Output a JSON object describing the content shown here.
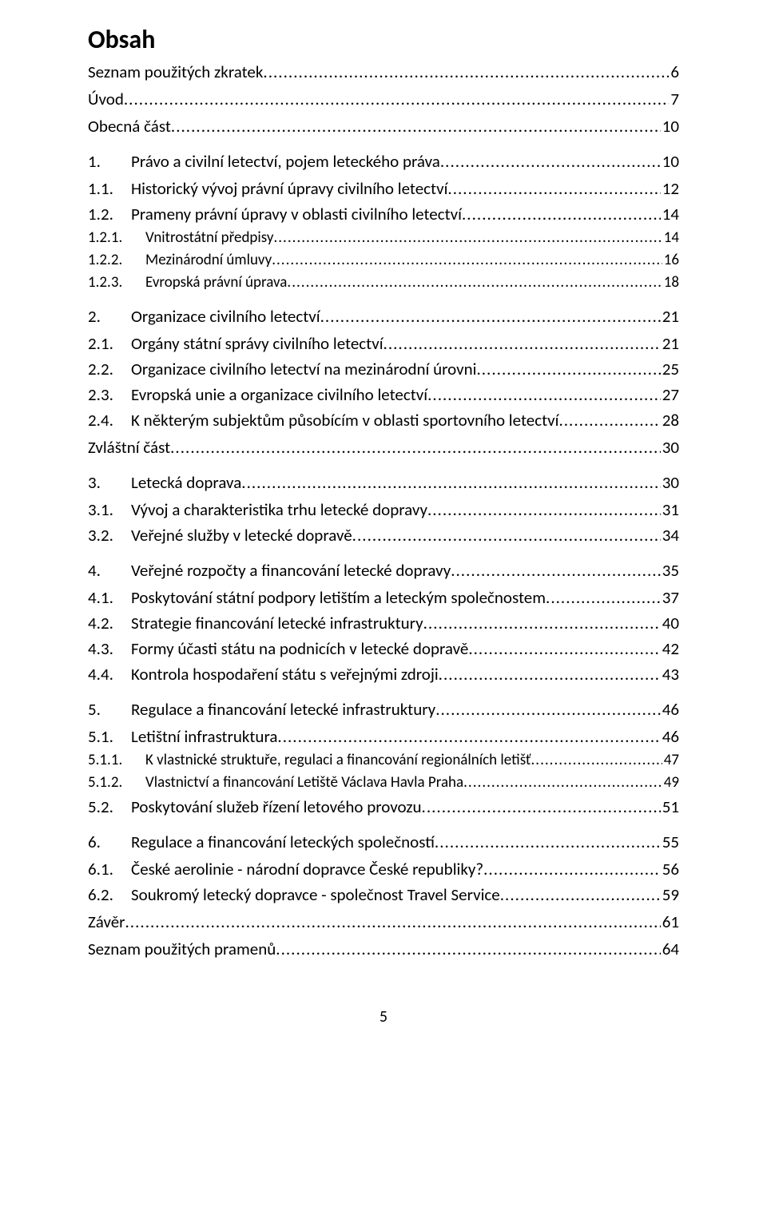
{
  "title": "Obsah",
  "page_number": "5",
  "entries": [
    {
      "level": "front",
      "num": "",
      "text": "Seznam použitých zkratek",
      "page": "6"
    },
    {
      "level": "front",
      "num": "",
      "text": "Úvod",
      "page": "7"
    },
    {
      "level": "front",
      "num": "",
      "text": "Obecná část",
      "page": "10"
    },
    {
      "level": "1",
      "num": "1.",
      "text": "Právo a civilní letectví, pojem leteckého práva",
      "page": "10"
    },
    {
      "level": "2",
      "num": "1.1.",
      "text": "Historický vývoj právní úpravy civilního letectví",
      "page": "12"
    },
    {
      "level": "2",
      "num": "1.2.",
      "text": "Prameny právní úpravy v oblasti civilního letectví",
      "page": "14"
    },
    {
      "level": "3",
      "num": "1.2.1.",
      "text": "Vnitrostátní předpisy",
      "page": "14"
    },
    {
      "level": "3",
      "num": "1.2.2.",
      "text": "Mezinárodní úmluvy",
      "page": "16"
    },
    {
      "level": "3",
      "num": "1.2.3.",
      "text": "Evropská právní úprava",
      "page": "18"
    },
    {
      "level": "1",
      "num": "2.",
      "text": "Organizace civilního letectví",
      "page": "21"
    },
    {
      "level": "2",
      "num": "2.1.",
      "text": "Orgány státní správy civilního letectví",
      "page": "21"
    },
    {
      "level": "2",
      "num": "2.2.",
      "text": "Organizace civilního letectví na mezinárodní úrovni",
      "page": "25"
    },
    {
      "level": "2",
      "num": "2.3.",
      "text": "Evropská unie a organizace civilního letectví",
      "page": "27"
    },
    {
      "level": "2",
      "num": "2.4.",
      "text": "K některým subjektům působícím v oblasti sportovního letectví",
      "page": "28"
    },
    {
      "level": "front",
      "num": "",
      "text": "Zvláštní část",
      "page": "30"
    },
    {
      "level": "1",
      "num": "3.",
      "text": "Letecká doprava",
      "page": "30"
    },
    {
      "level": "2",
      "num": "3.1.",
      "text": "Vývoj a charakteristika trhu letecké dopravy",
      "page": "31"
    },
    {
      "level": "2",
      "num": "3.2.",
      "text": "Veřejné služby v letecké dopravě",
      "page": "34"
    },
    {
      "level": "1",
      "num": "4.",
      "text": "Veřejné rozpočty a financování letecké dopravy",
      "page": "35"
    },
    {
      "level": "2",
      "num": "4.1.",
      "text": "Poskytování státní podpory letištím a leteckým společnostem",
      "page": "37"
    },
    {
      "level": "2",
      "num": "4.2.",
      "text": "Strategie financování letecké infrastruktury",
      "page": "40"
    },
    {
      "level": "2",
      "num": "4.3.",
      "text": "Formy účasti státu na podnicích v letecké dopravě",
      "page": "42"
    },
    {
      "level": "2",
      "num": "4.4.",
      "text": "Kontrola hospodaření státu s veřejnými zdroji",
      "page": "43"
    },
    {
      "level": "1",
      "num": "5.",
      "text": "Regulace a financování letecké infrastruktury",
      "page": "46"
    },
    {
      "level": "2",
      "num": "5.1.",
      "text": "Letištní infrastruktura",
      "page": "46"
    },
    {
      "level": "3",
      "num": "5.1.1.",
      "text": "K vlastnické struktuře, regulaci a financování regionálních letišť",
      "page": "47"
    },
    {
      "level": "3",
      "num": "5.1.2.",
      "text": "Vlastnictví a financování Letiště Václava Havla Praha",
      "page": "49"
    },
    {
      "level": "2",
      "num": "5.2.",
      "text": "Poskytování služeb řízení letového provozu",
      "page": "51"
    },
    {
      "level": "1",
      "num": "6.",
      "text": "Regulace a financování leteckých společností",
      "page": "55"
    },
    {
      "level": "2",
      "num": "6.1.",
      "text": "České aerolinie - národní dopravce České republiky?",
      "page": "56"
    },
    {
      "level": "2",
      "num": "6.2.",
      "text": "Soukromý letecký dopravce - společnost Travel Service",
      "page": "59"
    },
    {
      "level": "front",
      "num": "",
      "text": "Závěr",
      "page": "61"
    },
    {
      "level": "front",
      "num": "",
      "text": "Seznam použitých pramenů",
      "page": "64"
    }
  ]
}
